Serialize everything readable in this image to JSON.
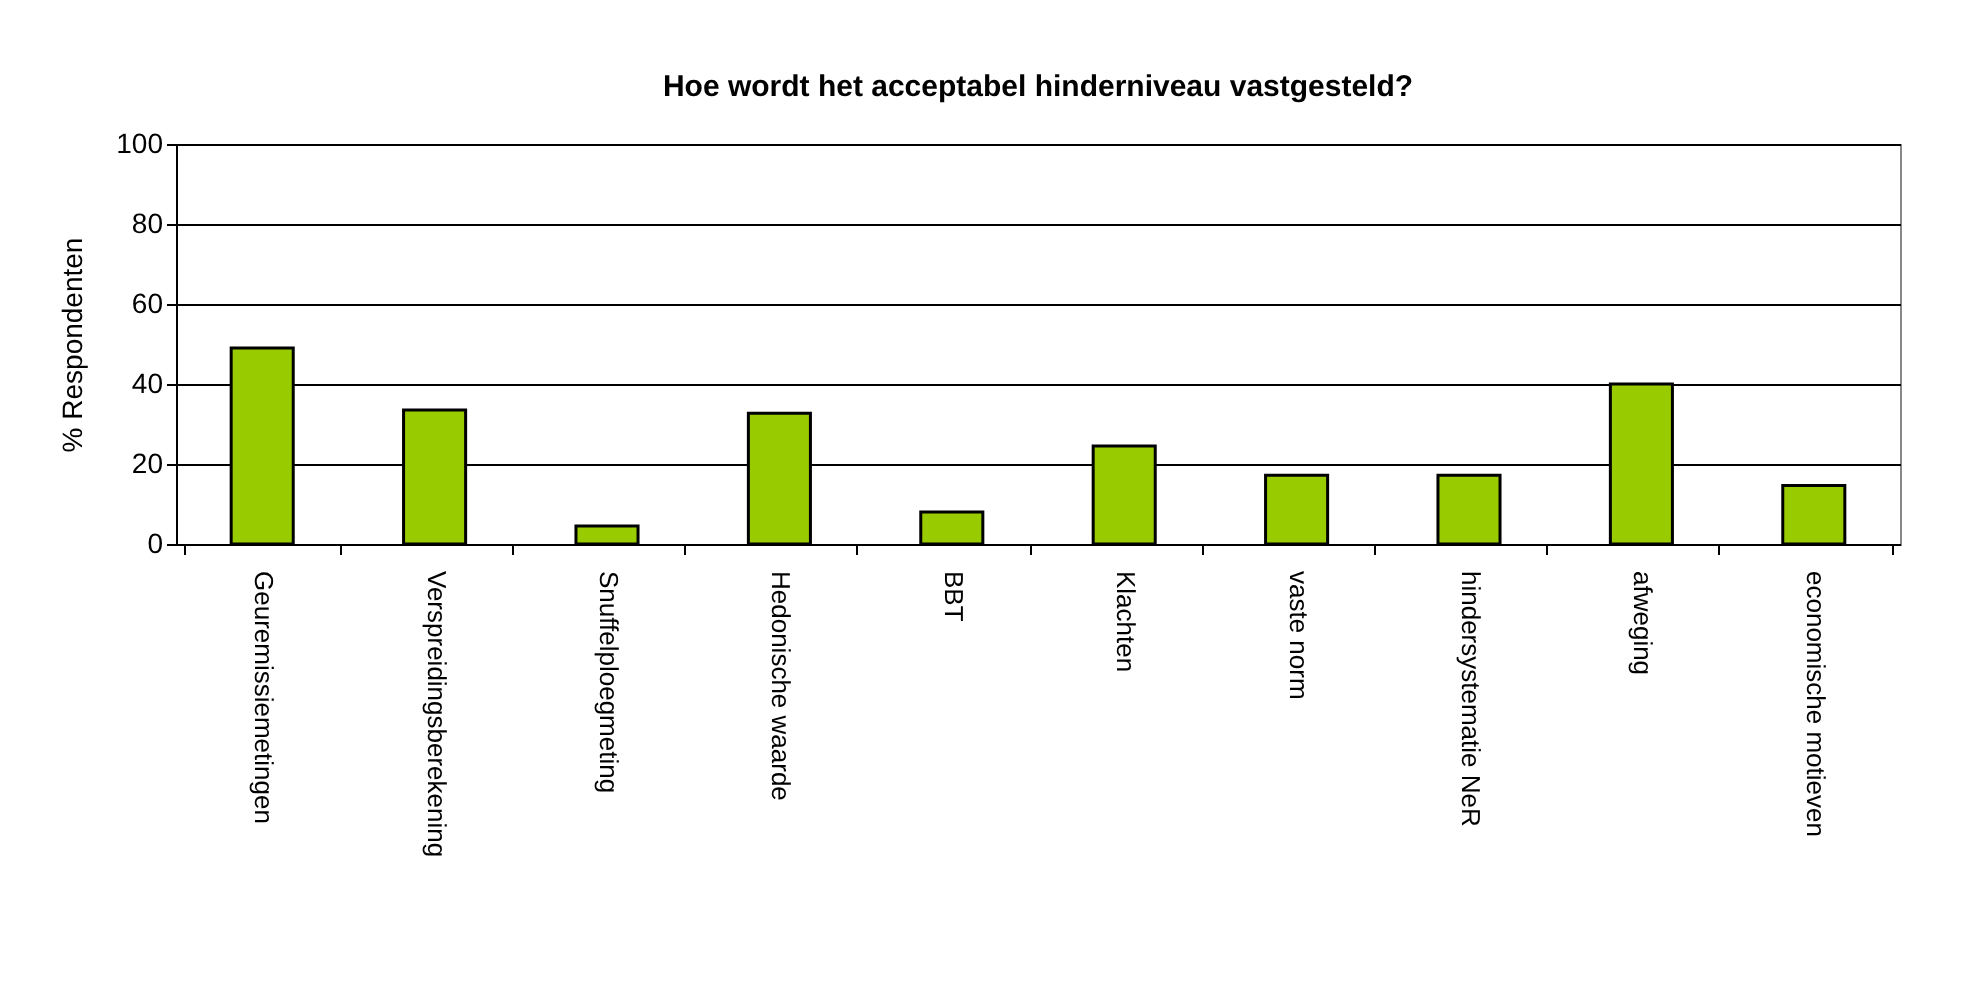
{
  "chart_data": {
    "type": "bar",
    "title": "Hoe wordt het acceptabel hinderniveau vastgesteld?",
    "ylabel": "% Respondenten",
    "categories": [
      "Geuremissiemetingen",
      "Verspreidingsberekening",
      "Snuffelploegmeting",
      "Hedonische waarde",
      "BBT",
      "Klachten",
      "vaste norm",
      "hindersystematie NeR",
      "afweging",
      "economische motieven"
    ],
    "values": [
      49,
      33.5,
      4.5,
      32.7,
      8,
      24.5,
      17.2,
      17.2,
      40,
      14.6
    ],
    "color": "#99cc00",
    "ylim": [
      0,
      100
    ],
    "yticks": [
      0,
      20,
      40,
      60,
      80,
      100
    ],
    "grid": "y"
  }
}
